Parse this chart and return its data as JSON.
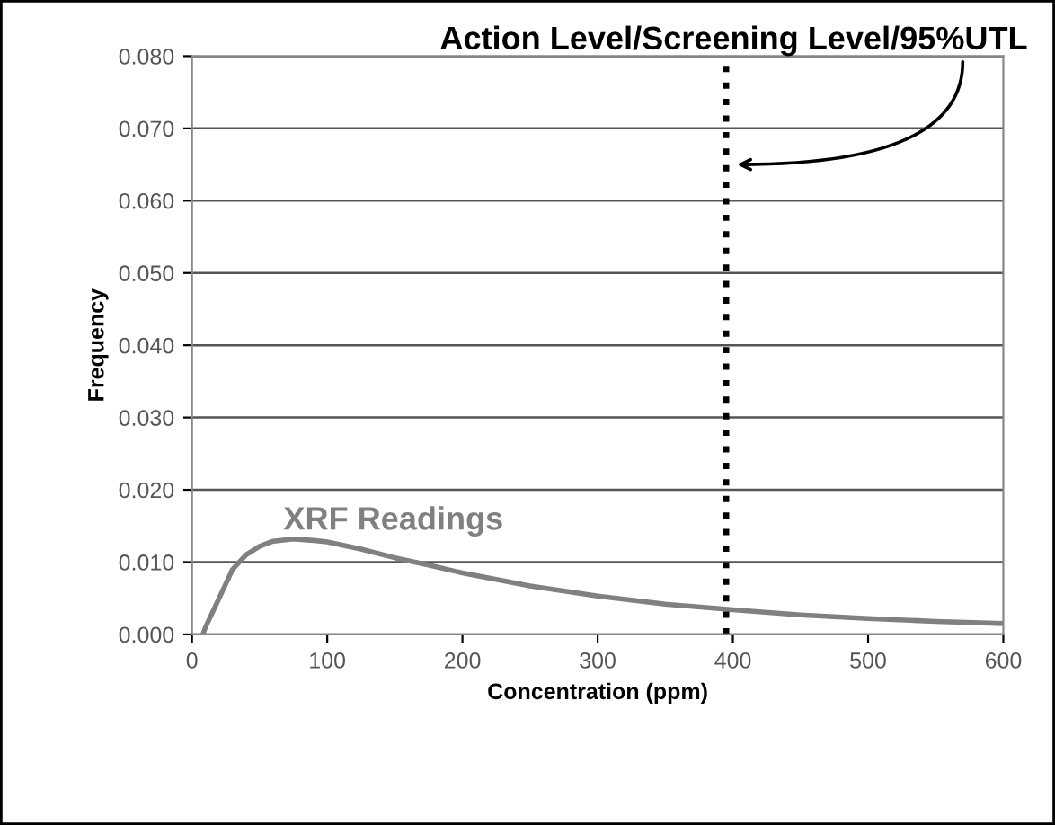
{
  "chart_data": {
    "type": "line",
    "xlabel": "Concentration (ppm)",
    "ylabel": "Frequency",
    "xlim": [
      0,
      600
    ],
    "xticks": [
      0,
      100,
      200,
      300,
      400,
      500,
      600
    ],
    "ylim": [
      0,
      0.08
    ],
    "yticks": [
      {
        "value": 0,
        "label": "0.000"
      },
      {
        "value": 0.01,
        "label": "0.010"
      },
      {
        "value": 0.02,
        "label": "0.020"
      },
      {
        "value": 0.03,
        "label": "0.030"
      },
      {
        "value": 0.04,
        "label": "0.040"
      },
      {
        "value": 0.05,
        "label": "0.050"
      },
      {
        "value": 0.06,
        "label": "0.060"
      },
      {
        "value": 0.07,
        "label": "0.070"
      },
      {
        "value": 0.08,
        "label": "0.080"
      }
    ],
    "grid": "y",
    "legend": false,
    "marker": "none",
    "line_style": "solid",
    "series": [
      {
        "name": "XRF Readings",
        "color": "#808080",
        "x": [
          8,
          10,
          20,
          30,
          40,
          50,
          60,
          75,
          90,
          100,
          125,
          150,
          175,
          200,
          250,
          300,
          350,
          400,
          450,
          500,
          550,
          600
        ],
        "values": [
          0,
          0.001,
          0.005,
          0.009,
          0.011,
          0.0122,
          0.0129,
          0.0132,
          0.013,
          0.0128,
          0.0118,
          0.0106,
          0.0096,
          0.0085,
          0.0067,
          0.0053,
          0.0042,
          0.0034,
          0.0027,
          0.0022,
          0.0018,
          0.0015
        ]
      }
    ],
    "ref_lines": [
      {
        "axis": "x",
        "value": 395,
        "label": "Action Level/Screening Level/95%UTL",
        "color": "#000000",
        "line_style": "dotted"
      }
    ]
  }
}
